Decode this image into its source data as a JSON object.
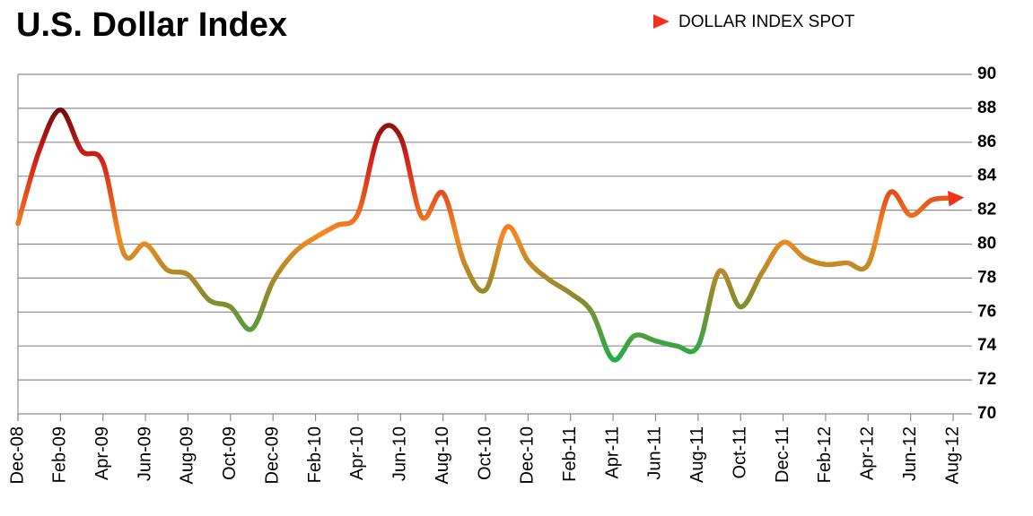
{
  "chart_data": {
    "type": "line",
    "title": "U.S. Dollar Index",
    "categories": [
      "Dec-08",
      null,
      "Feb-09",
      null,
      "Apr-09",
      null,
      "Jun-09",
      null,
      "Aug-09",
      null,
      "Oct-09",
      null,
      "Dec-09",
      null,
      "Feb-10",
      null,
      "Apr-10",
      null,
      "Jun-10",
      null,
      "Aug-10",
      null,
      "Oct-10",
      null,
      "Dec-10",
      null,
      "Feb-11",
      null,
      "Apr-11",
      null,
      "Jun-11",
      null,
      "Aug-11",
      null,
      "Oct-11",
      null,
      "Dec-11",
      null,
      "Feb-12",
      null,
      "Apr-12",
      null,
      "Jun-12",
      null,
      "Aug-12"
    ],
    "series": [
      {
        "name": "DOLLAR INDEX SPOT",
        "color": "#f26a1b",
        "values": [
          81.2,
          85.5,
          87.9,
          85.5,
          84.8,
          79.4,
          80.0,
          78.5,
          78.2,
          76.7,
          76.3,
          75.0,
          77.8,
          79.5,
          80.4,
          81.1,
          81.8,
          86.5,
          86.3,
          81.6,
          83.0,
          78.9,
          77.3,
          81.0,
          79.0,
          77.9,
          77.1,
          76.0,
          73.2,
          74.6,
          74.3,
          74.0,
          74.0,
          78.4,
          76.3,
          78.3,
          80.1,
          79.2,
          78.8,
          78.9,
          78.8,
          83.0,
          81.7,
          82.6,
          82.7
        ]
      }
    ],
    "color_scale": [
      {
        "value": 88,
        "color": "#6e0c0c"
      },
      {
        "value": 85,
        "color": "#d4201a"
      },
      {
        "value": 80.5,
        "color": "#f58a1f"
      },
      {
        "value": 77,
        "color": "#8f8a2c"
      },
      {
        "value": 73,
        "color": "#1fae4b"
      }
    ],
    "ylim": [
      70,
      90
    ],
    "yticks": [
      70,
      72,
      74,
      76,
      78,
      80,
      82,
      84,
      86,
      88,
      90
    ],
    "grid": true,
    "y_axis_side": "right",
    "legend": "top-right"
  }
}
